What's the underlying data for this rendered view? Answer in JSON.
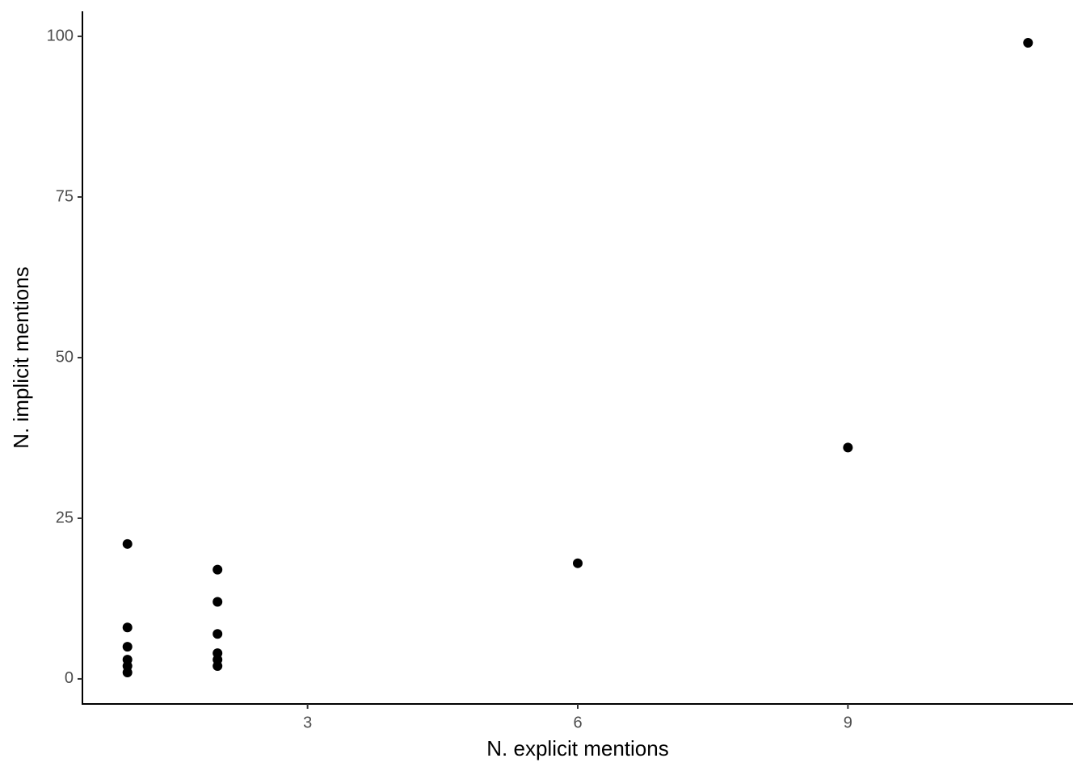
{
  "chart_data": {
    "type": "scatter",
    "x_label": "N. explicit mentions",
    "y_label": "N. implicit mentions",
    "x": [
      1,
      1,
      1,
      1,
      1,
      1,
      2,
      2,
      2,
      2,
      2,
      2,
      6,
      9,
      11
    ],
    "values": [
      21,
      8,
      5,
      3,
      2,
      1,
      17,
      12,
      7,
      4,
      3,
      2,
      18,
      36,
      99
    ],
    "color": "#000000",
    "xlim": [
      0.5,
      11.5
    ],
    "xticks": [
      3,
      6,
      9
    ],
    "ylim": [
      -3.9,
      103.9
    ],
    "yticks": [
      0,
      25,
      50,
      75,
      100
    ],
    "grid": false
  }
}
